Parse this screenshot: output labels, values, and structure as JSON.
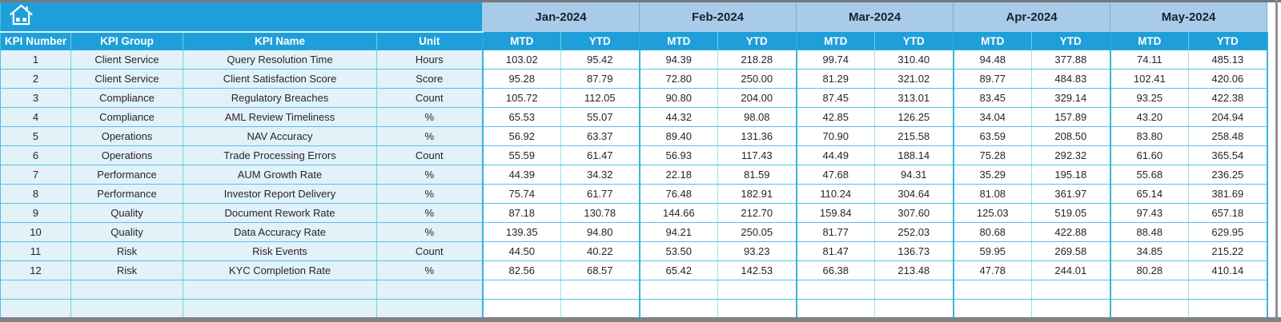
{
  "window": {
    "chrome_border_color": "#808285",
    "table_accent_color": "#1e9fd9",
    "month_band_color": "#a9cbea",
    "left_column_fill": "#e3f1f9",
    "grid_line_color": "#55c2e5"
  },
  "home_button": {
    "icon": "home-icon"
  },
  "table": {
    "left_headers": [
      "KPI Number",
      "KPI Group",
      "KPI Name",
      "Unit"
    ],
    "months": [
      "Jan-2024",
      "Feb-2024",
      "Mar-2024",
      "Apr-2024",
      "May-2024"
    ],
    "period_headers": [
      "MTD",
      "YTD"
    ],
    "rows": [
      {
        "number": "1",
        "group": "Client Service",
        "name": "Query Resolution Time",
        "unit": "Hours",
        "values": [
          "103.02",
          "95.42",
          "94.39",
          "218.28",
          "99.74",
          "310.40",
          "94.48",
          "377.88",
          "74.11",
          "485.13"
        ]
      },
      {
        "number": "2",
        "group": "Client Service",
        "name": "Client Satisfaction Score",
        "unit": "Score",
        "values": [
          "95.28",
          "87.79",
          "72.80",
          "250.00",
          "81.29",
          "321.02",
          "89.77",
          "484.83",
          "102.41",
          "420.06"
        ]
      },
      {
        "number": "3",
        "group": "Compliance",
        "name": "Regulatory Breaches",
        "unit": "Count",
        "values": [
          "105.72",
          "112.05",
          "90.80",
          "204.00",
          "87.45",
          "313.01",
          "83.45",
          "329.14",
          "93.25",
          "422.38"
        ]
      },
      {
        "number": "4",
        "group": "Compliance",
        "name": "AML Review Timeliness",
        "unit": "%",
        "values": [
          "65.53",
          "55.07",
          "44.32",
          "98.08",
          "42.85",
          "126.25",
          "34.04",
          "157.89",
          "43.20",
          "204.94"
        ]
      },
      {
        "number": "5",
        "group": "Operations",
        "name": "NAV Accuracy",
        "unit": "%",
        "values": [
          "56.92",
          "63.37",
          "89.40",
          "131.36",
          "70.90",
          "215.58",
          "63.59",
          "208.50",
          "83.80",
          "258.48"
        ]
      },
      {
        "number": "6",
        "group": "Operations",
        "name": "Trade Processing Errors",
        "unit": "Count",
        "values": [
          "55.59",
          "61.47",
          "56.93",
          "117.43",
          "44.49",
          "188.14",
          "75.28",
          "292.32",
          "61.60",
          "365.54"
        ]
      },
      {
        "number": "7",
        "group": "Performance",
        "name": "AUM Growth Rate",
        "unit": "%",
        "values": [
          "44.39",
          "34.32",
          "22.18",
          "81.59",
          "47.68",
          "94.31",
          "35.29",
          "195.18",
          "55.68",
          "236.25"
        ]
      },
      {
        "number": "8",
        "group": "Performance",
        "name": "Investor Report Delivery",
        "unit": "%",
        "values": [
          "75.74",
          "61.77",
          "76.48",
          "182.91",
          "110.24",
          "304.64",
          "81.08",
          "361.97",
          "65.14",
          "381.69"
        ]
      },
      {
        "number": "9",
        "group": "Quality",
        "name": "Document Rework Rate",
        "unit": "%",
        "values": [
          "87.18",
          "130.78",
          "144.66",
          "212.70",
          "159.84",
          "307.60",
          "125.03",
          "519.05",
          "97.43",
          "657.18"
        ]
      },
      {
        "number": "10",
        "group": "Quality",
        "name": "Data Accuracy Rate",
        "unit": "%",
        "values": [
          "139.35",
          "94.80",
          "94.21",
          "250.05",
          "81.77",
          "252.03",
          "80.68",
          "422.88",
          "88.48",
          "629.95"
        ]
      },
      {
        "number": "11",
        "group": "Risk",
        "name": "Risk Events",
        "unit": "Count",
        "values": [
          "44.50",
          "40.22",
          "53.50",
          "93.23",
          "81.47",
          "136.73",
          "59.95",
          "269.58",
          "34.85",
          "215.22"
        ]
      },
      {
        "number": "12",
        "group": "Risk",
        "name": "KYC Completion Rate",
        "unit": "%",
        "values": [
          "82.56",
          "68.57",
          "65.42",
          "142.53",
          "66.38",
          "213.48",
          "47.78",
          "244.01",
          "80.28",
          "410.14"
        ]
      }
    ],
    "empty_row_count": 2
  }
}
